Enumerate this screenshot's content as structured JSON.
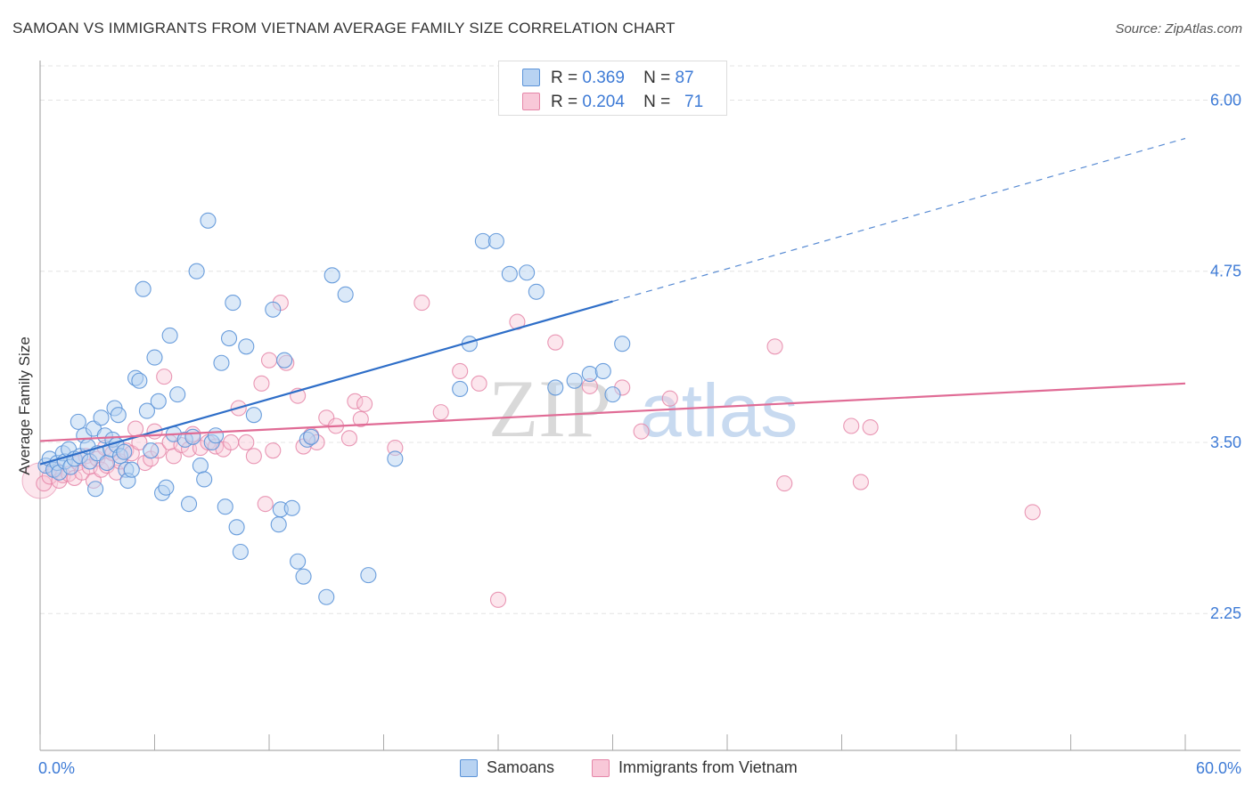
{
  "title": "SAMOAN VS IMMIGRANTS FROM VIETNAM AVERAGE FAMILY SIZE CORRELATION CHART",
  "source": "Source: ZipAtlas.com",
  "watermark": {
    "zip": "ZIP",
    "atlas": "atlas"
  },
  "legend": {
    "rows": [
      {
        "r_label": "R =",
        "r_value": "0.369",
        "n_label": "N =",
        "n_value": "87"
      },
      {
        "r_label": "R =",
        "r_value": "0.204",
        "n_label": "N =",
        "n_value": "71"
      }
    ]
  },
  "colors": {
    "samoans_fill": "#b8d3f2",
    "samoans_stroke": "#5b93d8",
    "samoans_line": "#2e6ec8",
    "vietnam_fill": "#f8c8d8",
    "vietnam_stroke": "#e586a8",
    "vietnam_line": "#e06b95",
    "axis_text": "#3e7bd6",
    "grid": "#e4e4e4"
  },
  "chart_data": {
    "type": "scatter",
    "title": "SAMOAN VS IMMIGRANTS FROM VIETNAM AVERAGE FAMILY SIZE CORRELATION CHART",
    "ylabel": "Average Family Size",
    "xlim": [
      0,
      60
    ],
    "ylim": [
      1.25,
      6.25
    ],
    "x_tick_labels": [
      "0.0%",
      "60.0%"
    ],
    "y_ticks": [
      2.25,
      3.5,
      4.75,
      6.0
    ],
    "y_tick_labels": [
      "2.25",
      "3.50",
      "4.75",
      "6.00"
    ],
    "grid": true,
    "legend_position": "top-center",
    "series": [
      {
        "name": "Samoans",
        "r": 0.369,
        "n": 87,
        "trend": {
          "x": [
            0,
            30
          ],
          "y": [
            3.34,
            4.53
          ],
          "dashed_to": [
            60,
            5.72
          ]
        },
        "points": [
          [
            0.3,
            3.33
          ],
          [
            0.5,
            3.38
          ],
          [
            0.7,
            3.3
          ],
          [
            0.9,
            3.35
          ],
          [
            1.0,
            3.28
          ],
          [
            1.2,
            3.42
          ],
          [
            1.3,
            3.36
          ],
          [
            1.5,
            3.45
          ],
          [
            1.6,
            3.32
          ],
          [
            1.8,
            3.38
          ],
          [
            2.0,
            3.65
          ],
          [
            2.1,
            3.4
          ],
          [
            2.3,
            3.55
          ],
          [
            2.5,
            3.47
          ],
          [
            2.6,
            3.36
          ],
          [
            2.8,
            3.6
          ],
          [
            2.9,
            3.16
          ],
          [
            3.0,
            3.42
          ],
          [
            3.2,
            3.68
          ],
          [
            3.4,
            3.55
          ],
          [
            3.5,
            3.35
          ],
          [
            3.7,
            3.45
          ],
          [
            3.8,
            3.52
          ],
          [
            3.9,
            3.75
          ],
          [
            4.0,
            3.48
          ],
          [
            4.1,
            3.7
          ],
          [
            4.2,
            3.4
          ],
          [
            4.4,
            3.43
          ],
          [
            4.5,
            3.3
          ],
          [
            4.6,
            3.22
          ],
          [
            4.8,
            3.3
          ],
          [
            5.0,
            3.97
          ],
          [
            5.2,
            3.95
          ],
          [
            5.4,
            4.62
          ],
          [
            5.6,
            3.73
          ],
          [
            5.8,
            3.44
          ],
          [
            6.0,
            4.12
          ],
          [
            6.2,
            3.8
          ],
          [
            6.4,
            3.13
          ],
          [
            6.6,
            3.17
          ],
          [
            6.8,
            4.28
          ],
          [
            7.0,
            3.56
          ],
          [
            7.2,
            3.85
          ],
          [
            7.6,
            3.52
          ],
          [
            7.8,
            3.05
          ],
          [
            8.0,
            3.54
          ],
          [
            8.2,
            4.75
          ],
          [
            8.4,
            3.33
          ],
          [
            8.6,
            3.23
          ],
          [
            8.8,
            5.12
          ],
          [
            9.0,
            3.5
          ],
          [
            9.2,
            3.55
          ],
          [
            9.5,
            4.08
          ],
          [
            9.7,
            3.03
          ],
          [
            9.9,
            4.26
          ],
          [
            10.1,
            4.52
          ],
          [
            10.3,
            2.88
          ],
          [
            10.5,
            2.7
          ],
          [
            10.8,
            4.2
          ],
          [
            11.2,
            3.7
          ],
          [
            12.2,
            4.47
          ],
          [
            12.5,
            2.9
          ],
          [
            12.6,
            3.01
          ],
          [
            12.8,
            4.1
          ],
          [
            13.2,
            3.02
          ],
          [
            13.5,
            2.63
          ],
          [
            13.8,
            2.52
          ],
          [
            14.0,
            3.52
          ],
          [
            14.2,
            3.54
          ],
          [
            15.0,
            2.37
          ],
          [
            15.3,
            4.72
          ],
          [
            16.0,
            4.58
          ],
          [
            17.2,
            2.53
          ],
          [
            18.6,
            3.38
          ],
          [
            22.0,
            3.89
          ],
          [
            22.5,
            4.22
          ],
          [
            23.2,
            4.97
          ],
          [
            23.9,
            4.97
          ],
          [
            24.6,
            4.73
          ],
          [
            25.5,
            4.74
          ],
          [
            26.0,
            4.6
          ],
          [
            27.0,
            3.9
          ],
          [
            28.0,
            3.95
          ],
          [
            28.8,
            4.0
          ],
          [
            29.5,
            4.02
          ],
          [
            30.0,
            3.85
          ],
          [
            30.5,
            4.22
          ]
        ]
      },
      {
        "name": "Immigrants from Vietnam",
        "r": 0.204,
        "n": 71,
        "trend": {
          "x": [
            0,
            60
          ],
          "y": [
            3.51,
            3.93
          ]
        },
        "points": [
          [
            0.2,
            3.2
          ],
          [
            0.5,
            3.25
          ],
          [
            0.8,
            3.3
          ],
          [
            1.0,
            3.22
          ],
          [
            1.2,
            3.26
          ],
          [
            1.5,
            3.27
          ],
          [
            1.8,
            3.24
          ],
          [
            2.0,
            3.35
          ],
          [
            2.2,
            3.28
          ],
          [
            2.4,
            3.4
          ],
          [
            2.6,
            3.32
          ],
          [
            2.8,
            3.22
          ],
          [
            3.0,
            3.38
          ],
          [
            3.2,
            3.3
          ],
          [
            3.4,
            3.46
          ],
          [
            3.5,
            3.33
          ],
          [
            3.8,
            3.42
          ],
          [
            4.0,
            3.28
          ],
          [
            4.2,
            3.36
          ],
          [
            4.5,
            3.44
          ],
          [
            4.8,
            3.42
          ],
          [
            5.0,
            3.6
          ],
          [
            5.2,
            3.5
          ],
          [
            5.5,
            3.35
          ],
          [
            5.8,
            3.38
          ],
          [
            6.0,
            3.58
          ],
          [
            6.2,
            3.44
          ],
          [
            6.5,
            3.98
          ],
          [
            6.8,
            3.5
          ],
          [
            7.0,
            3.4
          ],
          [
            7.4,
            3.48
          ],
          [
            7.8,
            3.45
          ],
          [
            8.0,
            3.56
          ],
          [
            8.4,
            3.46
          ],
          [
            8.8,
            3.5
          ],
          [
            9.2,
            3.47
          ],
          [
            9.6,
            3.45
          ],
          [
            10.0,
            3.5
          ],
          [
            10.4,
            3.75
          ],
          [
            10.8,
            3.5
          ],
          [
            11.2,
            3.4
          ],
          [
            11.6,
            3.93
          ],
          [
            11.8,
            3.05
          ],
          [
            12.0,
            4.1
          ],
          [
            12.2,
            3.44
          ],
          [
            12.6,
            4.52
          ],
          [
            12.9,
            4.08
          ],
          [
            13.5,
            3.84
          ],
          [
            13.8,
            3.47
          ],
          [
            14.2,
            3.55
          ],
          [
            14.5,
            3.5
          ],
          [
            15.0,
            3.68
          ],
          [
            15.5,
            3.62
          ],
          [
            16.2,
            3.53
          ],
          [
            16.5,
            3.8
          ],
          [
            16.8,
            3.67
          ],
          [
            17.0,
            3.78
          ],
          [
            18.6,
            3.46
          ],
          [
            20.0,
            4.52
          ],
          [
            21.0,
            3.72
          ],
          [
            22.0,
            4.02
          ],
          [
            23.0,
            3.93
          ],
          [
            24.0,
            2.35
          ],
          [
            25.0,
            4.38
          ],
          [
            30.5,
            3.9
          ],
          [
            31.5,
            3.58
          ],
          [
            33.0,
            3.82
          ],
          [
            38.5,
            4.2
          ],
          [
            39.0,
            3.2
          ],
          [
            42.5,
            3.62
          ],
          [
            43.5,
            3.61
          ]
        ],
        "extra_points": [
          [
            27.0,
            4.23
          ],
          [
            28.8,
            3.91
          ],
          [
            43.0,
            3.21
          ],
          [
            52.0,
            2.99
          ]
        ]
      }
    ]
  },
  "bottom_legend": [
    {
      "label": "Samoans"
    },
    {
      "label": "Immigrants from Vietnam"
    }
  ]
}
